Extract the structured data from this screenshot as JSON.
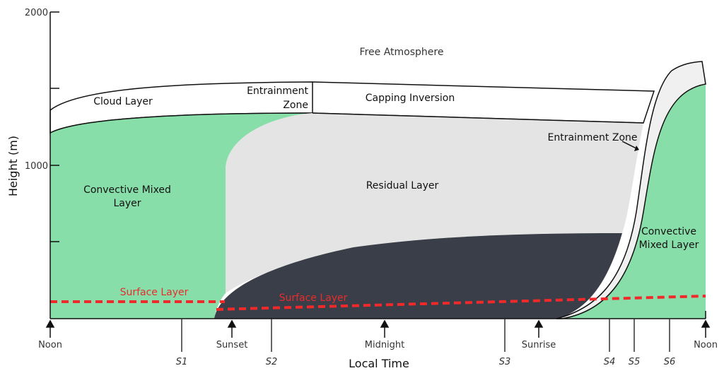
{
  "axes": {
    "y_label": "Height (m)",
    "y_ticks": [
      "2000",
      "1000"
    ],
    "x_label": "Local Time",
    "x_events": [
      "Noon",
      "Sunset",
      "Midnight",
      "Sunrise",
      "Noon"
    ],
    "x_stations": [
      "S1",
      "S2",
      "S3",
      "S4",
      "S5",
      "S6"
    ]
  },
  "regions": {
    "free_atmosphere": "Free Atmosphere",
    "cloud_layer": "Cloud Layer",
    "entrainment_zone_top": "Entrainment Zone",
    "capping_inversion": "Capping Inversion",
    "entrainment_zone_right": "Entrainment Zone",
    "convective_left": "Convective Mixed Layer",
    "residual": "Residual Layer",
    "convective_right": "Convective Mixed Layer",
    "surface_left": "Surface Layer",
    "surface_night": "Surface Layer",
    "stable_boundary_layer": ""
  },
  "colors": {
    "mixed_layer": "#88dea9",
    "residual_layer": "#e4e4e4",
    "stable_layer": "#393e48",
    "entrainment_band": "#f0f0f0",
    "surface_layer_line": "#f02a2a"
  }
}
